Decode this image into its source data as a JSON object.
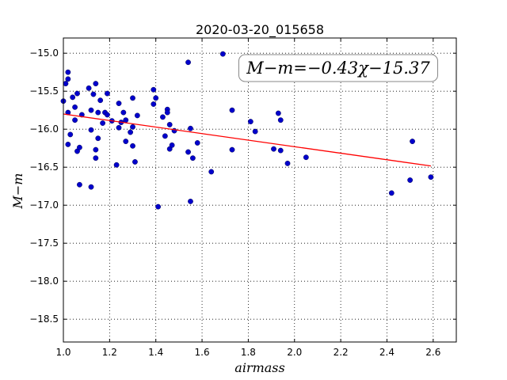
{
  "chart_data": {
    "type": "scatter",
    "title": "2020-03-20_015658",
    "xlabel": "airmass",
    "ylabel": "M−m",
    "xlim": [
      1.0,
      2.7
    ],
    "ylim": [
      -18.8,
      -14.8
    ],
    "y_inverted": false,
    "xticks": [
      "1.0",
      "1.2",
      "1.4",
      "1.6",
      "1.8",
      "2.0",
      "2.2",
      "2.4",
      "2.6"
    ],
    "xtick_values": [
      1.0,
      1.2,
      1.4,
      1.6,
      1.8,
      2.0,
      2.2,
      2.4,
      2.6
    ],
    "yticks": [
      "−15.0",
      "−15.5",
      "−16.0",
      "−16.5",
      "−17.0",
      "−17.5",
      "−18.0",
      "−18.5"
    ],
    "ytick_values": [
      -15.0,
      -15.5,
      -16.0,
      -16.5,
      -17.0,
      -17.5,
      -18.0,
      -18.5
    ],
    "grid": true,
    "annotation": "M−m=−0.43χ−15.37",
    "annotation_position": "top-right",
    "colors": {
      "points": "#0000cc",
      "fit": "#ff0000",
      "axes": "#000000"
    },
    "fit_line": {
      "slope": -0.43,
      "intercept": -15.37,
      "x_range": [
        1.0,
        2.59
      ]
    },
    "points": [
      {
        "x": 1.0,
        "y": -15.63
      },
      {
        "x": 1.01,
        "y": -15.4
      },
      {
        "x": 1.02,
        "y": -15.34
      },
      {
        "x": 1.02,
        "y": -15.25
      },
      {
        "x": 1.02,
        "y": -15.78
      },
      {
        "x": 1.02,
        "y": -16.2
      },
      {
        "x": 1.03,
        "y": -16.07
      },
      {
        "x": 1.04,
        "y": -15.58
      },
      {
        "x": 1.05,
        "y": -15.71
      },
      {
        "x": 1.05,
        "y": -15.88
      },
      {
        "x": 1.06,
        "y": -15.53
      },
      {
        "x": 1.06,
        "y": -16.29
      },
      {
        "x": 1.07,
        "y": -16.24
      },
      {
        "x": 1.07,
        "y": -16.73
      },
      {
        "x": 1.08,
        "y": -15.81
      },
      {
        "x": 1.11,
        "y": -15.46
      },
      {
        "x": 1.12,
        "y": -15.75
      },
      {
        "x": 1.12,
        "y": -16.01
      },
      {
        "x": 1.12,
        "y": -16.76
      },
      {
        "x": 1.13,
        "y": -15.54
      },
      {
        "x": 1.14,
        "y": -15.4
      },
      {
        "x": 1.14,
        "y": -16.27
      },
      {
        "x": 1.14,
        "y": -16.38
      },
      {
        "x": 1.15,
        "y": -15.78
      },
      {
        "x": 1.15,
        "y": -16.12
      },
      {
        "x": 1.16,
        "y": -15.62
      },
      {
        "x": 1.17,
        "y": -15.92
      },
      {
        "x": 1.18,
        "y": -15.78
      },
      {
        "x": 1.19,
        "y": -15.53
      },
      {
        "x": 1.19,
        "y": -15.81
      },
      {
        "x": 1.21,
        "y": -15.89
      },
      {
        "x": 1.23,
        "y": -16.47
      },
      {
        "x": 1.24,
        "y": -15.66
      },
      {
        "x": 1.24,
        "y": -15.98
      },
      {
        "x": 1.25,
        "y": -15.91
      },
      {
        "x": 1.26,
        "y": -15.78
      },
      {
        "x": 1.27,
        "y": -15.88
      },
      {
        "x": 1.27,
        "y": -16.16
      },
      {
        "x": 1.29,
        "y": -16.04
      },
      {
        "x": 1.3,
        "y": -15.59
      },
      {
        "x": 1.3,
        "y": -15.97
      },
      {
        "x": 1.3,
        "y": -16.22
      },
      {
        "x": 1.31,
        "y": -16.43
      },
      {
        "x": 1.32,
        "y": -15.82
      },
      {
        "x": 1.39,
        "y": -15.48
      },
      {
        "x": 1.39,
        "y": -15.67
      },
      {
        "x": 1.4,
        "y": -15.59
      },
      {
        "x": 1.41,
        "y": -17.02
      },
      {
        "x": 1.43,
        "y": -15.84
      },
      {
        "x": 1.44,
        "y": -16.09
      },
      {
        "x": 1.45,
        "y": -15.74
      },
      {
        "x": 1.45,
        "y": -15.78
      },
      {
        "x": 1.46,
        "y": -15.94
      },
      {
        "x": 1.46,
        "y": -16.26
      },
      {
        "x": 1.47,
        "y": -16.21
      },
      {
        "x": 1.48,
        "y": -16.02
      },
      {
        "x": 1.54,
        "y": -15.12
      },
      {
        "x": 1.54,
        "y": -16.3
      },
      {
        "x": 1.55,
        "y": -15.99
      },
      {
        "x": 1.55,
        "y": -16.95
      },
      {
        "x": 1.56,
        "y": -16.38
      },
      {
        "x": 1.58,
        "y": -16.18
      },
      {
        "x": 1.64,
        "y": -16.56
      },
      {
        "x": 1.69,
        "y": -15.01
      },
      {
        "x": 1.73,
        "y": -15.75
      },
      {
        "x": 1.73,
        "y": -16.27
      },
      {
        "x": 1.81,
        "y": -15.9
      },
      {
        "x": 1.83,
        "y": -16.03
      },
      {
        "x": 1.91,
        "y": -16.26
      },
      {
        "x": 1.93,
        "y": -15.79
      },
      {
        "x": 1.94,
        "y": -15.88
      },
      {
        "x": 1.94,
        "y": -16.28
      },
      {
        "x": 1.97,
        "y": -16.45
      },
      {
        "x": 2.05,
        "y": -16.37
      },
      {
        "x": 2.42,
        "y": -16.84
      },
      {
        "x": 2.5,
        "y": -16.67
      },
      {
        "x": 2.51,
        "y": -16.16
      },
      {
        "x": 2.59,
        "y": -16.63
      }
    ]
  }
}
